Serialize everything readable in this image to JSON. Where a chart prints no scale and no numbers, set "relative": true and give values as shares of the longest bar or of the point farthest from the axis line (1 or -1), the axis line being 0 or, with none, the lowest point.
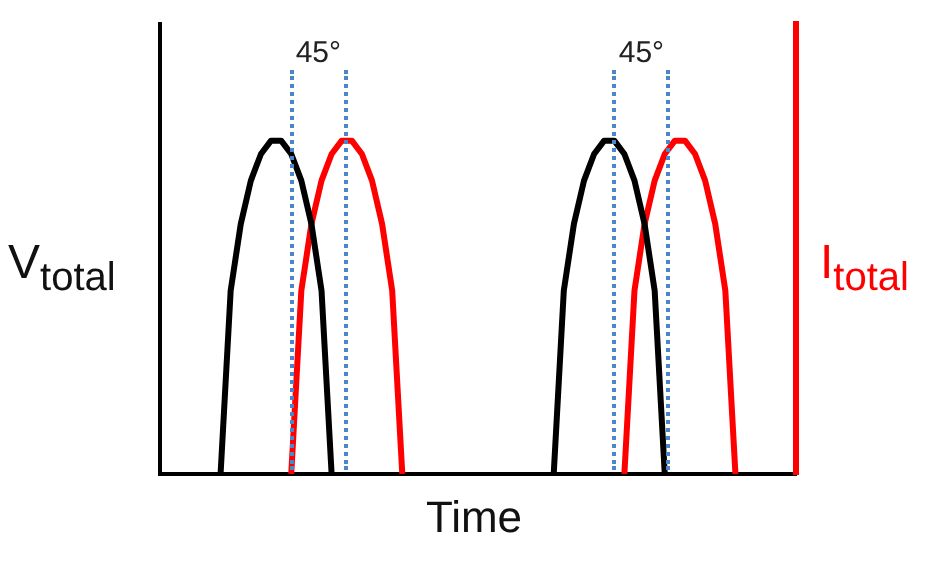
{
  "chart_data": {
    "type": "line",
    "xlabel": "Time",
    "ylabel": "V$_{total}$",
    "y2label": "I$_{total}$",
    "relative": true,
    "marker": "none",
    "categories": [
      null,
      null,
      null,
      null,
      null,
      null,
      null,
      null,
      null,
      null,
      null,
      null,
      null,
      null,
      null,
      null,
      null,
      null,
      null,
      null,
      null,
      null,
      null,
      null,
      null,
      null,
      null,
      null,
      null,
      null,
      null,
      null,
      null,
      null,
      null,
      null,
      null,
      null,
      null,
      null,
      null,
      null,
      null,
      null,
      null,
      null,
      null,
      null,
      null,
      null,
      null,
      null,
      null,
      null,
      null,
      null,
      null,
      null,
      null,
      null,
      null,
      null,
      null,
      null
    ],
    "series": [
      {
        "color": "#000000",
        "values": [
          null,
          null,
          null,
          null,
          null,
          null,
          0,
          0.55,
          0.75,
          0.88,
          0.96,
          1,
          1,
          0.96,
          0.88,
          0.75,
          0.55,
          0,
          null,
          null,
          null,
          null,
          null,
          null,
          null,
          null,
          null,
          null,
          null,
          null,
          null,
          null,
          null,
          null,
          null,
          null,
          null,
          null,
          null,
          null,
          null,
          null,
          null,
          null,
          null,
          null,
          null,
          null,
          null,
          null,
          null,
          null,
          null,
          null,
          null,
          null,
          null,
          null,
          null,
          null,
          null,
          null,
          null,
          null
        ]
      },
      {
        "color": "#ff0000",
        "values": [
          null,
          null,
          null,
          null,
          null,
          null,
          null,
          null,
          null,
          null,
          null,
          null,
          null,
          0,
          0.55,
          0.75,
          0.88,
          0.96,
          1,
          1,
          0.96,
          0.88,
          0.75,
          0.55,
          0,
          null,
          null,
          null,
          null,
          null,
          null,
          null,
          null,
          null,
          null,
          null,
          null,
          null,
          null,
          null,
          null,
          null,
          null,
          null,
          null,
          null,
          null,
          null,
          null,
          null,
          null,
          null,
          null,
          null,
          null,
          null,
          null,
          null,
          null,
          null,
          null,
          null,
          null,
          null
        ]
      },
      {
        "color": "#000000",
        "values": [
          null,
          null,
          null,
          null,
          null,
          null,
          null,
          null,
          null,
          null,
          null,
          null,
          null,
          null,
          null,
          null,
          null,
          null,
          null,
          null,
          null,
          null,
          null,
          null,
          null,
          null,
          null,
          null,
          null,
          null,
          null,
          null,
          null,
          null,
          null,
          null,
          null,
          null,
          null,
          0,
          0.55,
          0.75,
          0.88,
          0.96,
          1,
          1,
          0.96,
          0.88,
          0.75,
          0.55,
          0,
          null,
          null,
          null,
          null,
          null,
          null,
          null,
          null,
          null,
          null,
          null,
          null,
          null
        ]
      },
      {
        "color": "#ff0000",
        "values": [
          null,
          null,
          null,
          null,
          null,
          null,
          null,
          null,
          null,
          null,
          null,
          null,
          null,
          null,
          null,
          null,
          null,
          null,
          null,
          null,
          null,
          null,
          null,
          null,
          null,
          null,
          null,
          null,
          null,
          null,
          null,
          null,
          null,
          null,
          null,
          null,
          null,
          null,
          null,
          null,
          null,
          null,
          null,
          null,
          null,
          null,
          0,
          0.55,
          0.75,
          0.88,
          0.96,
          1,
          1,
          0.96,
          0.88,
          0.75,
          0.55,
          0,
          null,
          null,
          null,
          null,
          null,
          null
        ]
      }
    ],
    "annotations": [
      "45°",
      "45°"
    ]
  }
}
